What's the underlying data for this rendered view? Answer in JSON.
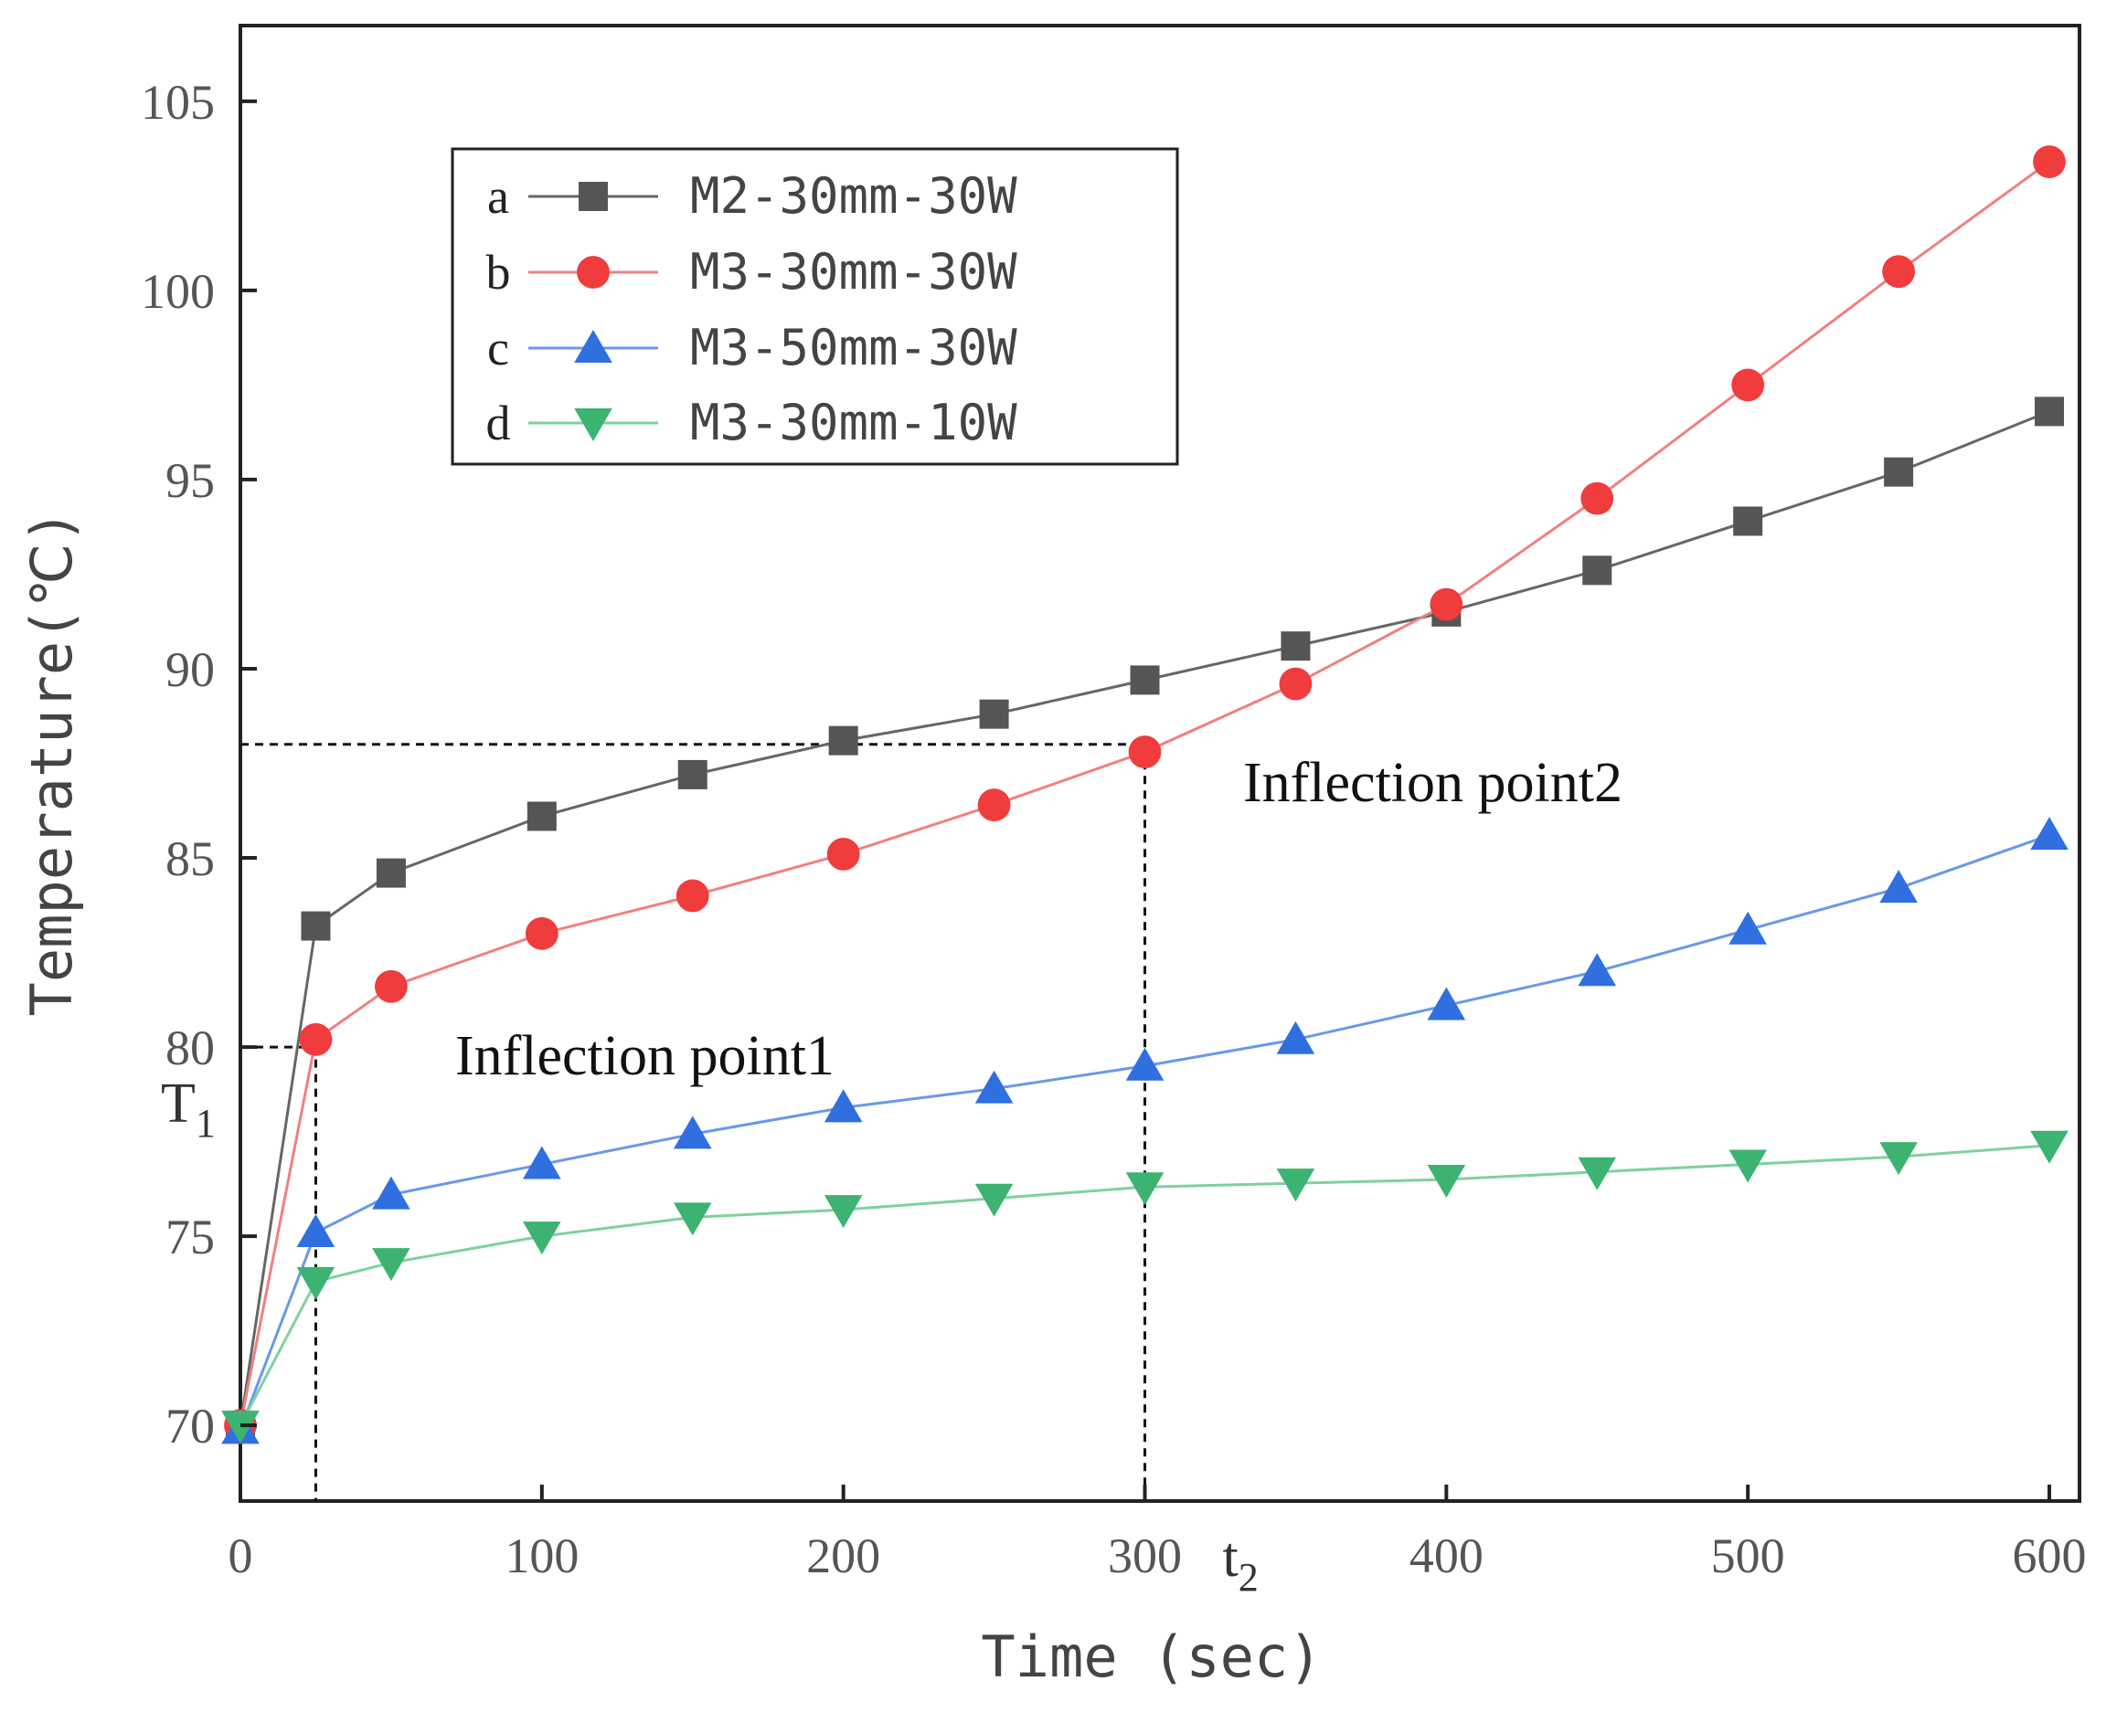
{
  "chart_data": {
    "type": "line",
    "title": "",
    "xlabel": "Time (sec)",
    "ylabel": "Temperature(℃)",
    "xlim": [
      0,
      610
    ],
    "ylim": [
      68,
      107
    ],
    "xticks": [
      0,
      100,
      200,
      300,
      400,
      500,
      600
    ],
    "yticks": [
      70,
      75,
      80,
      85,
      90,
      95,
      100,
      105
    ],
    "grid": false,
    "legend_position": "top-left",
    "x": [
      0,
      25,
      50,
      100,
      150,
      200,
      250,
      300,
      350,
      400,
      450,
      500,
      550,
      600
    ],
    "series": [
      {
        "letter": "a",
        "name": "M2-30mm-30W",
        "marker": "square",
        "color": "#555555",
        "line_color": "#666666",
        "values": [
          70.0,
          83.2,
          84.6,
          86.1,
          87.2,
          88.1,
          88.8,
          89.7,
          90.6,
          91.5,
          92.6,
          93.9,
          95.2,
          96.8
        ]
      },
      {
        "letter": "b",
        "name": "M3-30mm-30W",
        "marker": "circle",
        "color": "#f03c3c",
        "line_color": "#f08080",
        "values": [
          70.0,
          80.2,
          81.6,
          83.0,
          84.0,
          85.1,
          86.4,
          87.8,
          89.6,
          91.7,
          94.5,
          97.5,
          100.5,
          103.4
        ]
      },
      {
        "letter": "c",
        "name": "M3-50mm-30W",
        "marker": "triangle-up",
        "color": "#2f6fe0",
        "line_color": "#6a98ea",
        "values": [
          69.9,
          75.1,
          76.1,
          76.9,
          77.7,
          78.4,
          78.9,
          79.5,
          80.2,
          81.1,
          82.0,
          83.1,
          84.2,
          85.6
        ]
      },
      {
        "letter": "d",
        "name": "M3-30mm-10W",
        "marker": "triangle-down",
        "color": "#3cb371",
        "line_color": "#7fd19d",
        "values": [
          70.0,
          73.8,
          74.3,
          75.0,
          75.5,
          75.7,
          76.0,
          76.3,
          76.4,
          76.5,
          76.7,
          76.9,
          77.1,
          77.4
        ]
      }
    ],
    "annotations": [
      {
        "text": "Inflection point1",
        "x": 25,
        "y": 80
      },
      {
        "text": "Inflection point2",
        "x": 300,
        "y": 88
      }
    ],
    "reference_lines": [
      {
        "x": 25,
        "y": 80
      },
      {
        "x": 300,
        "y": 88
      }
    ],
    "axis_symbols": [
      {
        "base": "T",
        "sub": "1",
        "axis": "y",
        "value": 80
      },
      {
        "base": "t",
        "sub": "2",
        "axis": "x",
        "value": 300
      }
    ]
  }
}
